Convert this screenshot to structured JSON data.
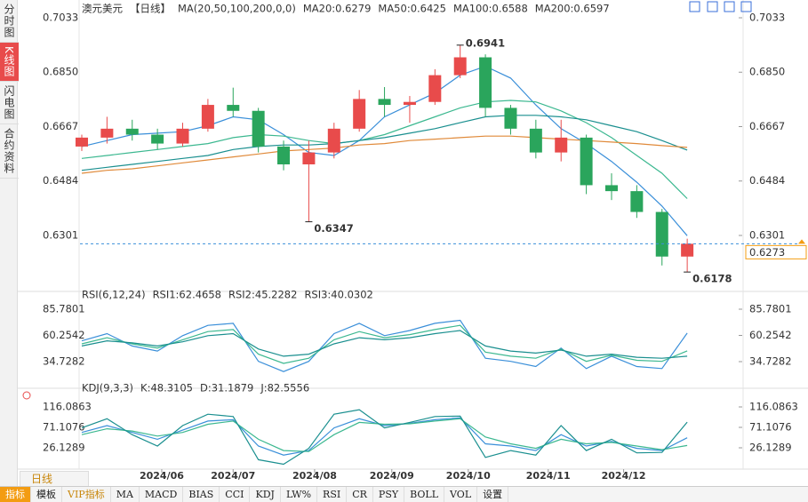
{
  "sidebar": {
    "tabs": [
      "分时图",
      "K线图",
      "闪电图",
      "合约资料"
    ]
  },
  "toolbar": {
    "period": "日线",
    "items": [
      "指标",
      "模板",
      "VIP指标",
      "MA",
      "MACD",
      "BIAS",
      "CCI",
      "KDJ",
      "LW%",
      "RSI",
      "CR",
      "PSY",
      "BOLL",
      "VOL",
      "设置"
    ]
  },
  "chart_data": [
    {
      "type": "candlestick",
      "title": "澳元美元",
      "period": "【日线】",
      "indicator": "MA(20,50,100,200,0,0)",
      "categories": [
        null,
        null,
        null,
        null,
        null,
        null,
        null,
        null,
        null,
        null,
        null,
        null,
        null,
        null,
        null,
        null,
        null,
        null,
        null,
        null,
        null,
        null,
        null,
        null,
        null
      ],
      "open": [
        0.66,
        0.663,
        0.666,
        0.664,
        0.661,
        0.666,
        0.674,
        0.672,
        0.66,
        0.654,
        0.658,
        0.666,
        0.676,
        0.674,
        0.675,
        0.684,
        0.69,
        0.673,
        0.666,
        0.658,
        0.663,
        0.647,
        0.645,
        0.638,
        0.623
      ],
      "high": [
        0.664,
        0.67,
        0.669,
        0.666,
        0.668,
        0.676,
        0.6798,
        0.673,
        0.662,
        0.662,
        0.668,
        0.679,
        0.68,
        0.677,
        0.686,
        0.6941,
        0.691,
        0.674,
        0.669,
        0.669,
        0.664,
        0.651,
        0.647,
        0.639,
        0.629
      ],
      "low": [
        0.6585,
        0.661,
        0.662,
        0.659,
        0.66,
        0.665,
        0.67,
        0.658,
        0.652,
        0.6347,
        0.656,
        0.665,
        0.67,
        0.668,
        0.674,
        0.683,
        0.67,
        0.664,
        0.656,
        0.655,
        0.644,
        0.642,
        0.636,
        0.62,
        0.6178
      ],
      "close": [
        0.663,
        0.666,
        0.664,
        0.661,
        0.666,
        0.674,
        0.672,
        0.66,
        0.654,
        0.658,
        0.666,
        0.676,
        0.674,
        0.675,
        0.684,
        0.69,
        0.673,
        0.666,
        0.658,
        0.663,
        0.647,
        0.645,
        0.638,
        0.623,
        0.6273
      ],
      "up_color": "#e84b4b",
      "down_color": "#2aa55c",
      "series": [
        {
          "name": "MA20:0.6279",
          "color": "#3a8fd9",
          "values": [
            0.66,
            0.662,
            0.664,
            0.6645,
            0.665,
            0.667,
            0.67,
            0.669,
            0.664,
            0.658,
            0.657,
            0.662,
            0.67,
            0.674,
            0.678,
            0.684,
            0.687,
            0.683,
            0.674,
            0.666,
            0.661,
            0.655,
            0.648,
            0.64,
            0.63
          ]
        },
        {
          "name": "MA50:0.6425",
          "color": "#3cb890",
          "values": [
            0.656,
            0.657,
            0.658,
            0.659,
            0.66,
            0.661,
            0.663,
            0.664,
            0.6635,
            0.662,
            0.661,
            0.662,
            0.664,
            0.667,
            0.67,
            0.673,
            0.675,
            0.6755,
            0.675,
            0.672,
            0.668,
            0.663,
            0.657,
            0.651,
            0.6425
          ]
        },
        {
          "name": "MA100:0.6588",
          "color": "#1a8f8f",
          "values": [
            0.652,
            0.653,
            0.654,
            0.655,
            0.656,
            0.657,
            0.659,
            0.66,
            0.6605,
            0.6605,
            0.661,
            0.662,
            0.663,
            0.6645,
            0.666,
            0.668,
            0.67,
            0.6705,
            0.6705,
            0.67,
            0.669,
            0.667,
            0.665,
            0.662,
            0.6588
          ]
        },
        {
          "name": "MA200:0.6597",
          "color": "#e08a3a",
          "values": [
            0.651,
            0.652,
            0.6525,
            0.6535,
            0.6545,
            0.6555,
            0.6565,
            0.6575,
            0.6585,
            0.659,
            0.6595,
            0.6605,
            0.661,
            0.662,
            0.6625,
            0.663,
            0.6635,
            0.6635,
            0.663,
            0.6625,
            0.662,
            0.6615,
            0.661,
            0.6603,
            0.6597
          ]
        }
      ],
      "annotations": [
        {
          "value": 0.6941,
          "color": "#e84b4b"
        },
        {
          "value": 0.6347,
          "color": "#3cb890"
        },
        {
          "value": 0.6178,
          "color": "#3cb890"
        }
      ],
      "last": {
        "value": 0.6273,
        "line_color": "#3a8fd9",
        "label_color": "#f39c12"
      },
      "xlim": [
        -0.07,
        26.18
      ],
      "ylim": [
        0.61217,
        0.7033
      ],
      "yticks": [
        0.6301,
        0.6484,
        0.6667,
        {
          "value": 0.685,
          "label": "0.6850"
        },
        0.7033
      ]
    },
    {
      "type": "line",
      "title": "RSI(6,12,24)",
      "series": [
        {
          "name": "RSI1:62.4658",
          "color": "#3a8fd9",
          "values": [
            55,
            62,
            50,
            45,
            60,
            70,
            72,
            35,
            25,
            35,
            62,
            72,
            60,
            65,
            72,
            75,
            38,
            35,
            30,
            48,
            28,
            40,
            30,
            28,
            62.4658
          ]
        },
        {
          "name": "RSI2:45.2282",
          "color": "#3cb890",
          "values": [
            52,
            58,
            52,
            48,
            56,
            64,
            66,
            42,
            33,
            38,
            56,
            64,
            58,
            61,
            66,
            70,
            44,
            40,
            38,
            47,
            35,
            41,
            36,
            35,
            45.2282
          ]
        },
        {
          "name": "RSI3:40.0302",
          "color": "#1a8f8f",
          "values": [
            50,
            55,
            53,
            50,
            54,
            60,
            62,
            47,
            40,
            42,
            52,
            58,
            56,
            58,
            62,
            65,
            50,
            45,
            43,
            46,
            40,
            42,
            39,
            38,
            40.0302
          ]
        }
      ],
      "xlim": [
        -0.07,
        26.18
      ],
      "ylim": [
        14.83,
        92.7
      ],
      "yticks": [
        34.7282,
        60.2542,
        85.7801
      ]
    },
    {
      "type": "line",
      "title": "KDJ(9,3,3)",
      "series": [
        {
          "name": "K:48.3105",
          "color": "#3a8fd9",
          "values": [
            60,
            75,
            60,
            45,
            65,
            85,
            88,
            30,
            10,
            20,
            70,
            90,
            75,
            80,
            88,
            92,
            35,
            30,
            20,
            55,
            30,
            40,
            25,
            20,
            48.3105
          ]
        },
        {
          "name": "D:31.1879",
          "color": "#3cb890",
          "values": [
            55,
            68,
            63,
            52,
            60,
            78,
            85,
            45,
            20,
            18,
            55,
            82,
            78,
            79,
            85,
            90,
            50,
            35,
            25,
            45,
            35,
            38,
            30,
            22,
            31.1879
          ]
        },
        {
          "name": "J:82.5556",
          "color": "#1a8f8f",
          "values": [
            70,
            90,
            55,
            30,
            75,
            100,
            95,
            0,
            -10,
            25,
            100,
            110,
            70,
            82,
            95,
            96,
            5,
            20,
            10,
            75,
            20,
            45,
            15,
            16,
            82.5556
          ]
        }
      ],
      "xlim": [
        -0.07,
        26.18
      ],
      "ylim": [
        -18.85,
        141.51
      ],
      "yticks": [
        26.1289,
        71.1076,
        116.0863
      ],
      "xticks": [
        {
          "value": 3.17,
          "label": "2024/06"
        },
        {
          "value": 6.0,
          "label": "2024/07"
        },
        {
          "value": 9.23,
          "label": "2024/08"
        },
        {
          "value": 12.29,
          "label": "2024/09"
        },
        {
          "value": 15.32,
          "label": "2024/10"
        },
        {
          "value": 18.49,
          "label": "2024/11"
        },
        {
          "value": 21.48,
          "label": "2024/12"
        }
      ]
    }
  ]
}
